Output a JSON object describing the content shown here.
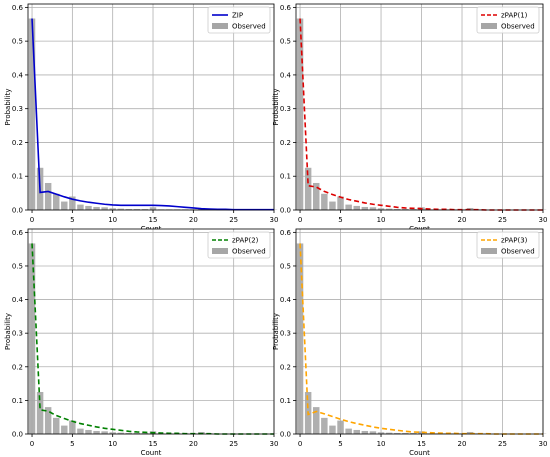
{
  "chart_data": [
    {
      "type": "bar",
      "xlabel": "Count",
      "ylabel": "Probability",
      "xlim": [
        -0.5,
        30
      ],
      "ylim": [
        0,
        0.61
      ],
      "xticks": [
        0,
        5,
        10,
        15,
        20,
        25,
        30
      ],
      "yticks": [
        0.0,
        0.1,
        0.2,
        0.3,
        0.4,
        0.5,
        0.6
      ],
      "grid": true,
      "legend_position": "top-right",
      "series": [
        {
          "name": "ZIP",
          "kind": "line",
          "color": "#0000cc",
          "dashed": false,
          "x": [
            0,
            1,
            2,
            3,
            4,
            5,
            6,
            7,
            8,
            9,
            10,
            11,
            12,
            13,
            14,
            15,
            16,
            17,
            18,
            19,
            20,
            21,
            22,
            23,
            24,
            25,
            26,
            27,
            28,
            29,
            30
          ],
          "y": [
            0.567,
            0.052,
            0.055,
            0.047,
            0.039,
            0.032,
            0.027,
            0.023,
            0.02,
            0.017,
            0.015,
            0.014,
            0.014,
            0.014,
            0.014,
            0.014,
            0.013,
            0.012,
            0.01,
            0.008,
            0.006,
            0.004,
            0.003,
            0.002,
            0.002,
            0.001,
            0.001,
            0.001,
            0.001,
            0.001,
            0.001
          ]
        },
        {
          "name": "Observed",
          "kind": "bar",
          "color": "#a6a6a6",
          "x": [
            0,
            1,
            2,
            3,
            4,
            5,
            6,
            7,
            8,
            9,
            10,
            11,
            12,
            13,
            14,
            15,
            16,
            17,
            18,
            19,
            20,
            21,
            22,
            23,
            24,
            25,
            26,
            27,
            28,
            29,
            30
          ],
          "y": [
            0.567,
            0.125,
            0.08,
            0.048,
            0.025,
            0.04,
            0.016,
            0.012,
            0.009,
            0.008,
            0.005,
            0.004,
            0.003,
            0.003,
            0.003,
            0.008,
            0.002,
            0.002,
            0.002,
            0.002,
            0.002,
            0.006,
            0.002,
            0.001,
            0.001,
            0.001,
            0.001,
            0.001,
            0.001,
            0.001,
            0.001
          ]
        }
      ]
    },
    {
      "type": "bar",
      "xlabel": "Count",
      "ylabel": "Probability",
      "xlim": [
        -0.5,
        30
      ],
      "ylim": [
        0,
        0.61
      ],
      "xticks": [
        0,
        5,
        10,
        15,
        20,
        25,
        30
      ],
      "yticks": [
        0.0,
        0.1,
        0.2,
        0.3,
        0.4,
        0.5,
        0.6
      ],
      "grid": true,
      "legend_position": "top-right",
      "series": [
        {
          "name": "zPAP(1)",
          "kind": "line",
          "color": "#dd0000",
          "dashed": true,
          "x": [
            0,
            1,
            2,
            3,
            4,
            5,
            6,
            7,
            8,
            9,
            10,
            11,
            12,
            13,
            14,
            15,
            16,
            17,
            18,
            19,
            20,
            21,
            22,
            23,
            24,
            25,
            26,
            27,
            28,
            29,
            30
          ],
          "y": [
            0.567,
            0.072,
            0.068,
            0.055,
            0.046,
            0.038,
            0.031,
            0.026,
            0.021,
            0.017,
            0.014,
            0.011,
            0.008,
            0.006,
            0.005,
            0.004,
            0.003,
            0.002,
            0.002,
            0.001,
            0.001,
            0.001,
            0.001,
            0.0,
            0.0,
            0.0,
            0.0,
            0.0,
            0.0,
            0.0,
            0.0
          ]
        },
        {
          "name": "Observed",
          "kind": "bar",
          "color": "#a6a6a6",
          "x": [
            0,
            1,
            2,
            3,
            4,
            5,
            6,
            7,
            8,
            9,
            10,
            11,
            12,
            13,
            14,
            15,
            16,
            17,
            18,
            19,
            20,
            21,
            22,
            23,
            24,
            25,
            26,
            27,
            28,
            29,
            30
          ],
          "y": [
            0.567,
            0.125,
            0.08,
            0.048,
            0.025,
            0.04,
            0.016,
            0.012,
            0.009,
            0.008,
            0.005,
            0.004,
            0.003,
            0.003,
            0.003,
            0.008,
            0.002,
            0.002,
            0.002,
            0.002,
            0.002,
            0.006,
            0.002,
            0.001,
            0.001,
            0.001,
            0.001,
            0.001,
            0.001,
            0.001,
            0.001
          ]
        }
      ]
    },
    {
      "type": "bar",
      "xlabel": "Count",
      "ylabel": "Probability",
      "xlim": [
        -0.5,
        30
      ],
      "ylim": [
        0,
        0.61
      ],
      "xticks": [
        0,
        5,
        10,
        15,
        20,
        25,
        30
      ],
      "yticks": [
        0.0,
        0.1,
        0.2,
        0.3,
        0.4,
        0.5,
        0.6
      ],
      "grid": true,
      "legend_position": "top-right",
      "series": [
        {
          "name": "zPAP(2)",
          "kind": "line",
          "color": "#008000",
          "dashed": true,
          "x": [
            0,
            1,
            2,
            3,
            4,
            5,
            6,
            7,
            8,
            9,
            10,
            11,
            12,
            13,
            14,
            15,
            16,
            17,
            18,
            19,
            20,
            21,
            22,
            23,
            24,
            25,
            26,
            27,
            28,
            29,
            30
          ],
          "y": [
            0.567,
            0.072,
            0.068,
            0.055,
            0.046,
            0.038,
            0.031,
            0.026,
            0.021,
            0.017,
            0.014,
            0.011,
            0.008,
            0.006,
            0.005,
            0.004,
            0.003,
            0.002,
            0.002,
            0.001,
            0.001,
            0.001,
            0.001,
            0.0,
            0.0,
            0.0,
            0.0,
            0.0,
            0.0,
            0.0,
            0.0
          ]
        },
        {
          "name": "Observed",
          "kind": "bar",
          "color": "#a6a6a6",
          "x": [
            0,
            1,
            2,
            3,
            4,
            5,
            6,
            7,
            8,
            9,
            10,
            11,
            12,
            13,
            14,
            15,
            16,
            17,
            18,
            19,
            20,
            21,
            22,
            23,
            24,
            25,
            26,
            27,
            28,
            29,
            30
          ],
          "y": [
            0.567,
            0.125,
            0.08,
            0.048,
            0.025,
            0.04,
            0.016,
            0.012,
            0.009,
            0.008,
            0.005,
            0.004,
            0.003,
            0.003,
            0.003,
            0.008,
            0.002,
            0.002,
            0.002,
            0.002,
            0.002,
            0.006,
            0.002,
            0.001,
            0.001,
            0.001,
            0.001,
            0.001,
            0.001,
            0.001,
            0.001
          ]
        }
      ]
    },
    {
      "type": "bar",
      "xlabel": "Count",
      "ylabel": "Probability",
      "xlim": [
        -0.5,
        30
      ],
      "ylim": [
        0,
        0.61
      ],
      "xticks": [
        0,
        5,
        10,
        15,
        20,
        25,
        30
      ],
      "yticks": [
        0.0,
        0.1,
        0.2,
        0.3,
        0.4,
        0.5,
        0.6
      ],
      "grid": true,
      "legend_position": "top-right",
      "series": [
        {
          "name": "zPAP(3)",
          "kind": "line",
          "color": "#ffa500",
          "dashed": true,
          "x": [
            0,
            1,
            2,
            3,
            4,
            5,
            6,
            7,
            8,
            9,
            10,
            11,
            12,
            13,
            14,
            15,
            16,
            17,
            18,
            19,
            20,
            21,
            22,
            23,
            24,
            25,
            26,
            27,
            28,
            29,
            30
          ],
          "y": [
            0.567,
            0.058,
            0.067,
            0.06,
            0.052,
            0.044,
            0.037,
            0.031,
            0.026,
            0.021,
            0.017,
            0.014,
            0.011,
            0.008,
            0.006,
            0.005,
            0.004,
            0.003,
            0.002,
            0.002,
            0.001,
            0.001,
            0.001,
            0.001,
            0.0,
            0.0,
            0.0,
            0.0,
            0.0,
            0.0,
            0.0
          ]
        },
        {
          "name": "Observed",
          "kind": "bar",
          "color": "#a6a6a6",
          "x": [
            0,
            1,
            2,
            3,
            4,
            5,
            6,
            7,
            8,
            9,
            10,
            11,
            12,
            13,
            14,
            15,
            16,
            17,
            18,
            19,
            20,
            21,
            22,
            23,
            24,
            25,
            26,
            27,
            28,
            29,
            30
          ],
          "y": [
            0.567,
            0.125,
            0.08,
            0.048,
            0.025,
            0.04,
            0.016,
            0.012,
            0.009,
            0.008,
            0.005,
            0.004,
            0.003,
            0.003,
            0.003,
            0.008,
            0.002,
            0.002,
            0.002,
            0.002,
            0.002,
            0.006,
            0.002,
            0.001,
            0.001,
            0.001,
            0.001,
            0.001,
            0.001,
            0.001,
            0.001
          ]
        }
      ]
    }
  ]
}
